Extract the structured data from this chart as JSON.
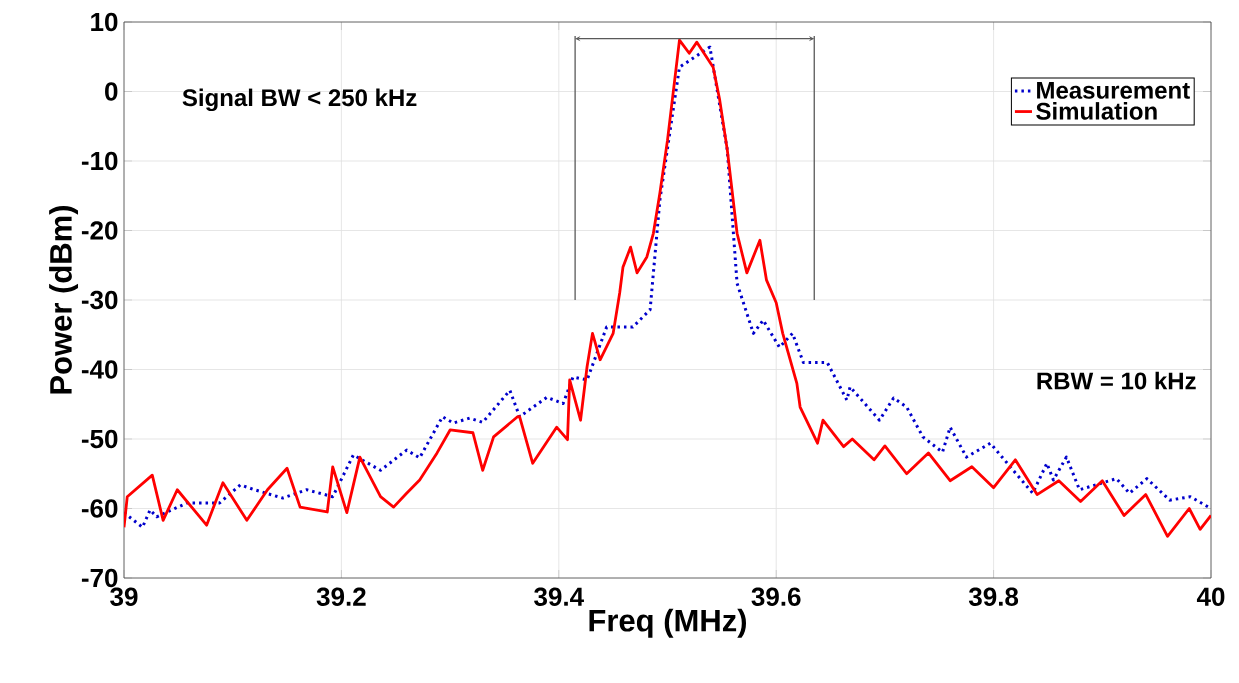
{
  "chart_data": {
    "type": "line",
    "xlabel": "Freq (MHz)",
    "ylabel": "Power (dBm)",
    "xlim": [
      39,
      40
    ],
    "ylim": [
      -70,
      10
    ],
    "xticks": [
      39,
      39.2,
      39.4,
      39.6,
      39.8,
      40
    ],
    "yticks": [
      -70,
      -60,
      -50,
      -40,
      -30,
      -20,
      -10,
      0,
      10
    ],
    "grid": true,
    "legend": "top right",
    "annotations": [
      "Signal BW < 250 kHz",
      "RBW = 10 kHz"
    ],
    "ref_lines": [
      {
        "axis": "x",
        "value": 39.415,
        "color": "#595959"
      },
      {
        "axis": "x",
        "value": 39.635,
        "color": "#595959"
      }
    ],
    "series": [
      {
        "name": "Measurement",
        "color": "#0000cc",
        "line_style": "dotted",
        "x": [
          39.0,
          39.017,
          39.024,
          39.03,
          39.058,
          39.088,
          39.107,
          39.12,
          39.146,
          39.168,
          39.192,
          39.211,
          39.236,
          39.26,
          39.272,
          39.293,
          39.303,
          39.318,
          39.33,
          39.355,
          39.364,
          39.389,
          39.404,
          39.413,
          39.426,
          39.444,
          39.468,
          39.484,
          39.493,
          39.511,
          39.539,
          39.555,
          39.564,
          39.579,
          39.588,
          39.603,
          39.615,
          39.625,
          39.647,
          39.665,
          39.668,
          39.695,
          39.708,
          39.72,
          39.735,
          39.753,
          39.76,
          39.775,
          39.797,
          39.818,
          39.836,
          39.849,
          39.855,
          39.867,
          39.879,
          39.913,
          39.925,
          39.941,
          39.962,
          39.981,
          40.0
        ],
        "values": [
          -60.6,
          -62.7,
          -60.2,
          -61.2,
          -59.2,
          -59.2,
          -56.6,
          -57.3,
          -58.5,
          -57.3,
          -58.3,
          -52.3,
          -54.5,
          -51.6,
          -52.7,
          -46.8,
          -47.7,
          -47,
          -47.6,
          -43,
          -46.8,
          -44,
          -44.9,
          -41.1,
          -41.5,
          -33.9,
          -33.9,
          -31.4,
          -15.6,
          3.5,
          6.4,
          -8.4,
          -27.6,
          -34.8,
          -32.9,
          -36.8,
          -34.8,
          -39,
          -39,
          -44.4,
          -42.5,
          -47.3,
          -44.1,
          -45.4,
          -49.7,
          -51.9,
          -48.3,
          -52.6,
          -50.6,
          -54.5,
          -57.8,
          -53.5,
          -55.9,
          -52.6,
          -57.3,
          -55.7,
          -57.8,
          -55.7,
          -58.8,
          -58.3,
          -60
        ]
      },
      {
        "name": "Simulation",
        "color": "#ff0000",
        "line_style": "solid",
        "x": [
          39.0,
          39.003,
          39.026,
          39.036,
          39.049,
          39.076,
          39.091,
          39.113,
          39.132,
          39.15,
          39.162,
          39.187,
          39.192,
          39.205,
          39.217,
          39.236,
          39.248,
          39.26,
          39.272,
          39.288,
          39.3,
          39.321,
          39.33,
          39.34,
          39.362,
          39.364,
          39.376,
          39.398,
          39.408,
          39.41,
          39.42,
          39.426,
          39.431,
          39.438,
          39.45,
          39.456,
          39.459,
          39.466,
          39.472,
          39.481,
          39.487,
          39.493,
          39.5,
          39.511,
          39.52,
          39.527,
          39.542,
          39.548,
          39.555,
          39.564,
          39.573,
          39.585,
          39.591,
          39.6,
          39.606,
          39.619,
          39.622,
          39.638,
          39.643,
          39.662,
          39.67,
          39.69,
          39.7,
          39.72,
          39.74,
          39.76,
          39.78,
          39.8,
          39.82,
          39.84,
          39.86,
          39.88,
          39.9,
          39.92,
          39.94,
          39.96,
          39.98,
          39.99,
          40.0
        ],
        "values": [
          -62.7,
          -58.3,
          -55.2,
          -61.7,
          -57.3,
          -62.4,
          -56.3,
          -61.7,
          -57.3,
          -54.2,
          -59.8,
          -60.5,
          -54,
          -60.6,
          -52.6,
          -58.3,
          -59.8,
          -57.8,
          -55.9,
          -52,
          -48.7,
          -49.1,
          -54.5,
          -49.7,
          -46.8,
          -46.8,
          -53.5,
          -48.3,
          -50.1,
          -41.5,
          -47.3,
          -39.6,
          -34.8,
          -38.6,
          -34.8,
          -29,
          -25.3,
          -22.4,
          -26.1,
          -23.8,
          -20.4,
          -14.6,
          -7,
          7.4,
          5.5,
          7.1,
          3.5,
          -1.2,
          -8.4,
          -20.4,
          -26.1,
          -21.4,
          -27.1,
          -30.4,
          -34.8,
          -42,
          -45.4,
          -50.6,
          -47.3,
          -51.1,
          -50,
          -53,
          -51,
          -55,
          -52,
          -56,
          -54,
          -57,
          -53,
          -58,
          -56,
          -59,
          -56,
          -61,
          -58,
          -64,
          -60,
          -63,
          -61
        ]
      }
    ]
  }
}
